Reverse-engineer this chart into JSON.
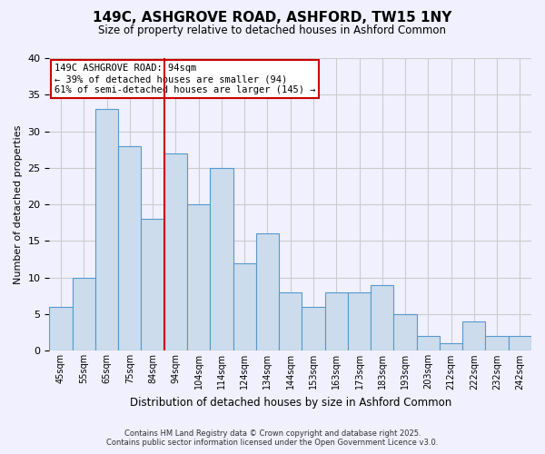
{
  "title": "149C, ASHGROVE ROAD, ASHFORD, TW15 1NY",
  "subtitle": "Size of property relative to detached houses in Ashford Common",
  "xlabel": "Distribution of detached houses by size in Ashford Common",
  "ylabel": "Number of detached properties",
  "bar_labels": [
    "45sqm",
    "55sqm",
    "65sqm",
    "75sqm",
    "84sqm",
    "94sqm",
    "104sqm",
    "114sqm",
    "124sqm",
    "134sqm",
    "144sqm",
    "153sqm",
    "163sqm",
    "173sqm",
    "183sqm",
    "193sqm",
    "203sqm",
    "212sqm",
    "222sqm",
    "232sqm",
    "242sqm"
  ],
  "bar_values": [
    6,
    10,
    33,
    28,
    18,
    27,
    20,
    25,
    12,
    16,
    8,
    6,
    8,
    8,
    9,
    5,
    2,
    1,
    4,
    2,
    2
  ],
  "bar_color": "#ccdcec",
  "bar_edge_color": "#5599cc",
  "grid_color": "#cccccc",
  "background_color": "#f0f0ff",
  "vline_x_index": 5,
  "vline_color": "#cc0000",
  "annotation_text": "149C ASHGROVE ROAD: 94sqm\n← 39% of detached houses are smaller (94)\n61% of semi-detached houses are larger (145) →",
  "annotation_box_color": "#ffffff",
  "annotation_box_edge": "#cc0000",
  "ylim": [
    0,
    40
  ],
  "yticks": [
    0,
    5,
    10,
    15,
    20,
    25,
    30,
    35,
    40
  ],
  "footer_line1": "Contains HM Land Registry data © Crown copyright and database right 2025.",
  "footer_line2": "Contains public sector information licensed under the Open Government Licence v3.0."
}
